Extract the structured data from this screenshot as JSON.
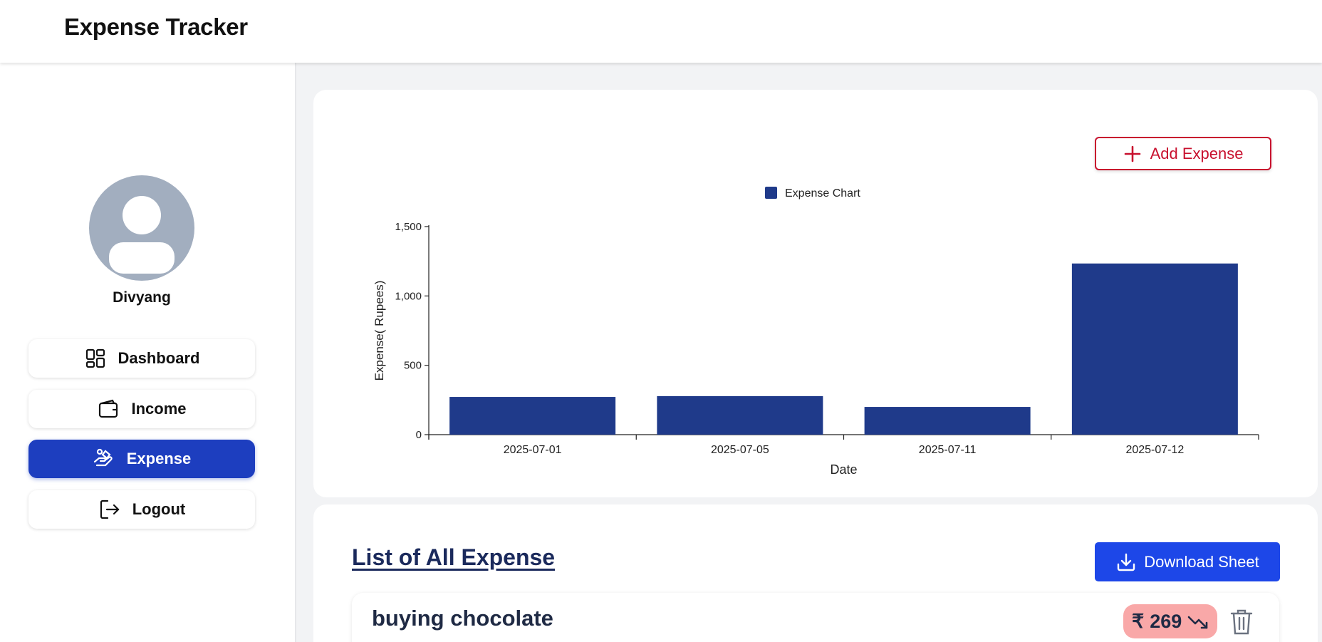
{
  "app": {
    "title": "Expense Tracker"
  },
  "user": {
    "name": "Divyang"
  },
  "sidebar": {
    "items": [
      {
        "label": "Dashboard",
        "icon": "dashboard-icon",
        "active": false
      },
      {
        "label": "Income",
        "icon": "wallet-icon",
        "active": false
      },
      {
        "label": "Expense",
        "icon": "hand-money-icon",
        "active": true
      },
      {
        "label": "Logout",
        "icon": "logout-icon",
        "active": false
      }
    ]
  },
  "chart_section": {
    "add_button_label": "Add Expense"
  },
  "chart_data": {
    "type": "bar",
    "legend": "Expense Chart",
    "legend_position": "top-center",
    "categories": [
      "2025-07-01",
      "2025-07-05",
      "2025-07-11",
      "2025-07-12"
    ],
    "values": [
      272,
      278,
      200,
      1234
    ],
    "xlabel": "Date",
    "ylabel": "Expense( Rupees)",
    "ylim": [
      0,
      1500
    ],
    "yticks": [
      0,
      500,
      1000,
      1500
    ],
    "ytick_labels": [
      "0",
      "500",
      "1,000",
      "1,500"
    ],
    "grid": false,
    "color": "#1f3a8a"
  },
  "list_section": {
    "title": "List of All Expense",
    "download_label": "Download Sheet",
    "items": [
      {
        "name": "buying chocolate",
        "amount": "269",
        "currency": "₹"
      }
    ]
  },
  "colors": {
    "accent": "#1d3ebf",
    "danger": "#c8102e",
    "download": "#1d47e8",
    "expense_badge": "#f9a8a8"
  }
}
